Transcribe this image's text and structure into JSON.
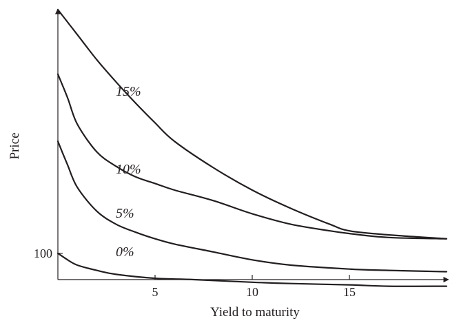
{
  "chart_data": {
    "type": "line",
    "title": "",
    "xlabel": "Yield to maturity",
    "ylabel": "Price",
    "x_ticks": [
      5,
      10,
      15
    ],
    "y_ticks": [
      100
    ],
    "xlim": [
      0,
      20
    ],
    "ylim": [
      80,
      285
    ],
    "grid": false,
    "legend": "none (curves labelled inline)",
    "series": [
      {
        "name": "15%",
        "x": [
          0,
          1,
          2,
          3,
          4,
          5,
          6,
          8,
          10,
          12,
          14,
          15,
          17,
          20
        ],
        "y": [
          285,
          266,
          247,
          230,
          214,
          199,
          185,
          165,
          148,
          134,
          122,
          117,
          114,
          111
        ]
      },
      {
        "name": "10%",
        "x": [
          0,
          0.5,
          1,
          2,
          3,
          4,
          5,
          6,
          8,
          10,
          12,
          14,
          15,
          17,
          20
        ],
        "y": [
          236,
          218,
          198,
          177,
          166,
          158,
          153,
          148,
          140,
          130,
          122,
          117,
          115,
          112,
          111
        ]
      },
      {
        "name": "5%",
        "x": [
          0,
          0.5,
          1,
          2,
          3,
          4,
          5,
          6,
          8,
          10,
          12,
          15,
          17,
          20
        ],
        "y": [
          185,
          167,
          150,
          132,
          122,
          116,
          111,
          107,
          101,
          95,
          91,
          88,
          87,
          86
        ]
      },
      {
        "name": "0%",
        "x": [
          0,
          0.5,
          1,
          2,
          3,
          5,
          7,
          10,
          12,
          15,
          17,
          20
        ],
        "y": [
          100,
          95,
          91,
          87,
          84,
          81,
          80,
          78,
          77,
          76,
          75,
          75
        ]
      }
    ]
  }
}
